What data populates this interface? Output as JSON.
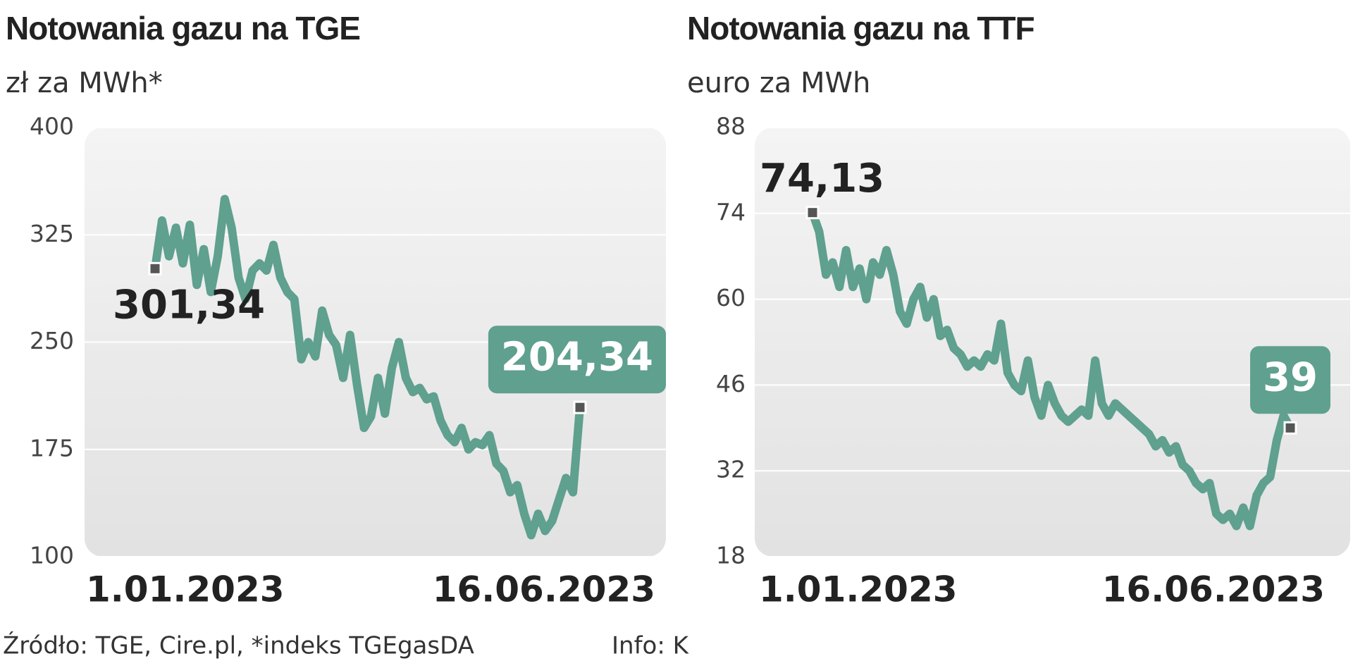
{
  "chart_data": [
    {
      "type": "line",
      "title": "Notowania gazu na TGE",
      "subtitle": "zł za MWh*",
      "categories": [
        "1.01.2023",
        null,
        null,
        null,
        null,
        null,
        null,
        null,
        null,
        null,
        null,
        null,
        null,
        null,
        null,
        null,
        null,
        null,
        null,
        null,
        null,
        null,
        null,
        null,
        null,
        null,
        null,
        null,
        null,
        null,
        null,
        null,
        null,
        null,
        null,
        null,
        null,
        null,
        null,
        null,
        null,
        null,
        null,
        null,
        null,
        null,
        null,
        null,
        null,
        null,
        null,
        null,
        null,
        null,
        null,
        null,
        null,
        null,
        null,
        null,
        null,
        "16.06.2023"
      ],
      "series": [
        {
          "name": "TGEgasDA",
          "color": "#5fa08f",
          "values": [
            301.34,
            335,
            310,
            330,
            305,
            332,
            290,
            315,
            285,
            310,
            350,
            330,
            295,
            280,
            300,
            305,
            300,
            318,
            295,
            285,
            280,
            238,
            250,
            240,
            272,
            255,
            248,
            225,
            255,
            220,
            190,
            198,
            225,
            200,
            232,
            250,
            225,
            215,
            218,
            210,
            212,
            195,
            185,
            180,
            190,
            175,
            180,
            178,
            185,
            165,
            160,
            145,
            150,
            130,
            115,
            130,
            118,
            125,
            140,
            155,
            145,
            204.34
          ],
          "value_labels": [
            "301,34",
            null,
            null,
            null,
            null,
            null,
            null,
            null,
            null,
            null,
            null,
            null,
            null,
            null,
            null,
            null,
            null,
            null,
            null,
            null,
            null,
            null,
            null,
            null,
            null,
            null,
            null,
            null,
            null,
            null,
            null,
            null,
            null,
            null,
            null,
            null,
            null,
            null,
            null,
            null,
            null,
            null,
            null,
            null,
            null,
            null,
            null,
            null,
            null,
            null,
            null,
            null,
            null,
            null,
            null,
            null,
            null,
            null,
            null,
            null,
            null,
            "204,34"
          ]
        }
      ],
      "ylim": [
        100,
        400
      ],
      "yticks": [
        100,
        175,
        250,
        325,
        400
      ],
      "grid": true
    },
    {
      "type": "line",
      "title": "Notowania gazu na TTF",
      "subtitle": "euro za MWh",
      "categories": [
        "1.01.2023",
        null,
        null,
        null,
        null,
        null,
        null,
        null,
        null,
        null,
        null,
        null,
        null,
        null,
        null,
        null,
        null,
        null,
        null,
        null,
        null,
        null,
        null,
        null,
        null,
        null,
        null,
        null,
        null,
        null,
        null,
        null,
        null,
        null,
        null,
        null,
        null,
        null,
        null,
        null,
        null,
        null,
        null,
        null,
        null,
        null,
        null,
        null,
        null,
        null,
        null,
        null,
        null,
        null,
        null,
        null,
        null,
        null,
        null,
        null,
        null,
        null,
        null,
        null,
        null,
        null,
        null,
        null,
        null,
        null,
        null,
        "16.06.2023"
      ],
      "series": [
        {
          "name": "TTF",
          "color": "#5fa08f",
          "values": [
            74.13,
            71,
            64,
            66,
            62,
            68,
            62,
            65,
            60,
            66,
            64,
            68,
            64,
            58,
            56,
            60,
            62,
            57,
            60,
            54,
            55,
            52,
            51,
            49,
            50,
            49,
            51,
            50,
            56,
            48,
            46,
            45,
            50,
            44,
            41,
            46,
            43,
            41,
            40,
            41,
            42,
            41,
            50,
            43,
            41,
            43,
            42,
            41,
            40,
            39,
            38,
            36,
            37,
            35,
            36,
            33,
            32,
            30,
            29,
            30,
            25,
            24,
            25,
            23,
            26,
            23,
            28,
            30,
            31,
            37,
            41,
            39
          ],
          "value_labels": [
            "74,13",
            null,
            null,
            null,
            null,
            null,
            null,
            null,
            null,
            null,
            null,
            null,
            null,
            null,
            null,
            null,
            null,
            null,
            null,
            null,
            null,
            null,
            null,
            null,
            null,
            null,
            null,
            null,
            null,
            null,
            null,
            null,
            null,
            null,
            null,
            null,
            null,
            null,
            null,
            null,
            null,
            null,
            null,
            null,
            null,
            null,
            null,
            null,
            null,
            null,
            null,
            null,
            null,
            null,
            null,
            null,
            null,
            null,
            null,
            null,
            null,
            null,
            null,
            null,
            null,
            null,
            null,
            null,
            null,
            null,
            null,
            "39"
          ]
        }
      ],
      "ylim": [
        18,
        88
      ],
      "yticks": [
        18,
        32,
        46,
        60,
        74,
        88
      ],
      "grid": true
    }
  ],
  "footer": {
    "source": "Źródło: TGE, Cire.pl, *indeks TGEgasDA",
    "info": "Info: K"
  }
}
